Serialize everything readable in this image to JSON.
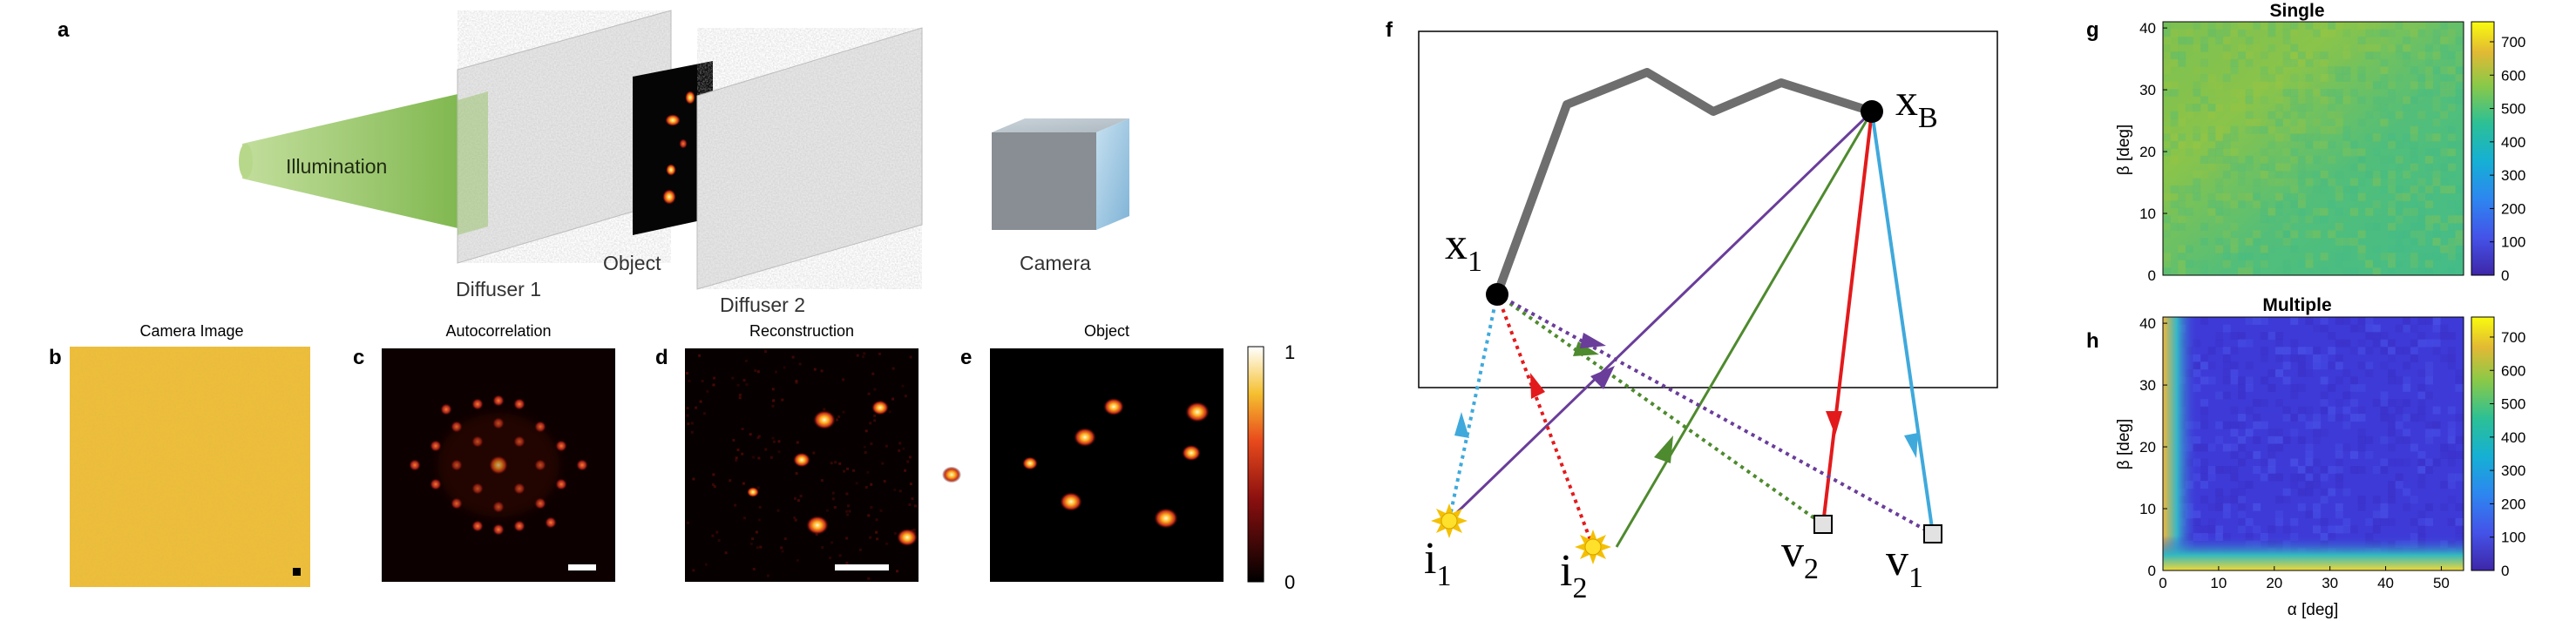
{
  "panel_labels": {
    "a": "a",
    "b": "b",
    "c": "c",
    "d": "d",
    "e": "e",
    "f": "f",
    "g": "g",
    "h": "h"
  },
  "setup": {
    "illumination": "Illumination",
    "diffuser1": "Diffuser 1",
    "object": "Object",
    "diffuser2": "Diffuser 2",
    "camera": "Camera"
  },
  "image_titles": {
    "camera_image": "Camera Image",
    "autocorrelation": "Autocorrelation",
    "reconstruction": "Reconstruction",
    "object": "Object"
  },
  "colorbar_e": {
    "max": "1",
    "min": "0"
  },
  "diagram_f": {
    "x1_main": "x",
    "x1_sub": "1",
    "xB_main": "x",
    "xB_sub": "B",
    "i1_main": "i",
    "i1_sub": "1",
    "i2_main": "i",
    "i2_sub": "2",
    "v2_main": "v",
    "v2_sub": "2",
    "v1_main": "v",
    "v1_sub": "1",
    "colors": {
      "purple": "#6a3d9a",
      "green": "#4e8a2e",
      "red": "#e31a1c",
      "blue": "#3fa9dc",
      "gray": "#6e6e6e"
    }
  },
  "chart_data": [
    {
      "type": "heatmap",
      "title": "Single",
      "xlabel": "",
      "ylabel": "β [deg]",
      "xlim": [
        0,
        54
      ],
      "ylim": [
        0,
        41
      ],
      "yticks": [
        "0",
        "10",
        "20",
        "30",
        "40"
      ],
      "colorbar_ticks": [
        "0",
        "100",
        "200",
        "300",
        "400",
        "500",
        "600",
        "700"
      ],
      "clim": [
        0,
        760
      ],
      "approx_value": 500,
      "approx_range": [
        470,
        540
      ]
    },
    {
      "type": "heatmap",
      "title": "Multiple",
      "xlabel": "α [deg]",
      "ylabel": "β [deg]",
      "xlim": [
        0,
        54
      ],
      "ylim": [
        0,
        41
      ],
      "xticks": [
        "0",
        "10",
        "20",
        "30",
        "40",
        "50"
      ],
      "yticks": [
        "0",
        "10",
        "20",
        "30",
        "40"
      ],
      "colorbar_ticks": [
        "0",
        "100",
        "200",
        "300",
        "400",
        "500",
        "600",
        "700"
      ],
      "clim": [
        0,
        760
      ],
      "approx_interior_value": 40,
      "approx_edge_value": 650
    }
  ]
}
